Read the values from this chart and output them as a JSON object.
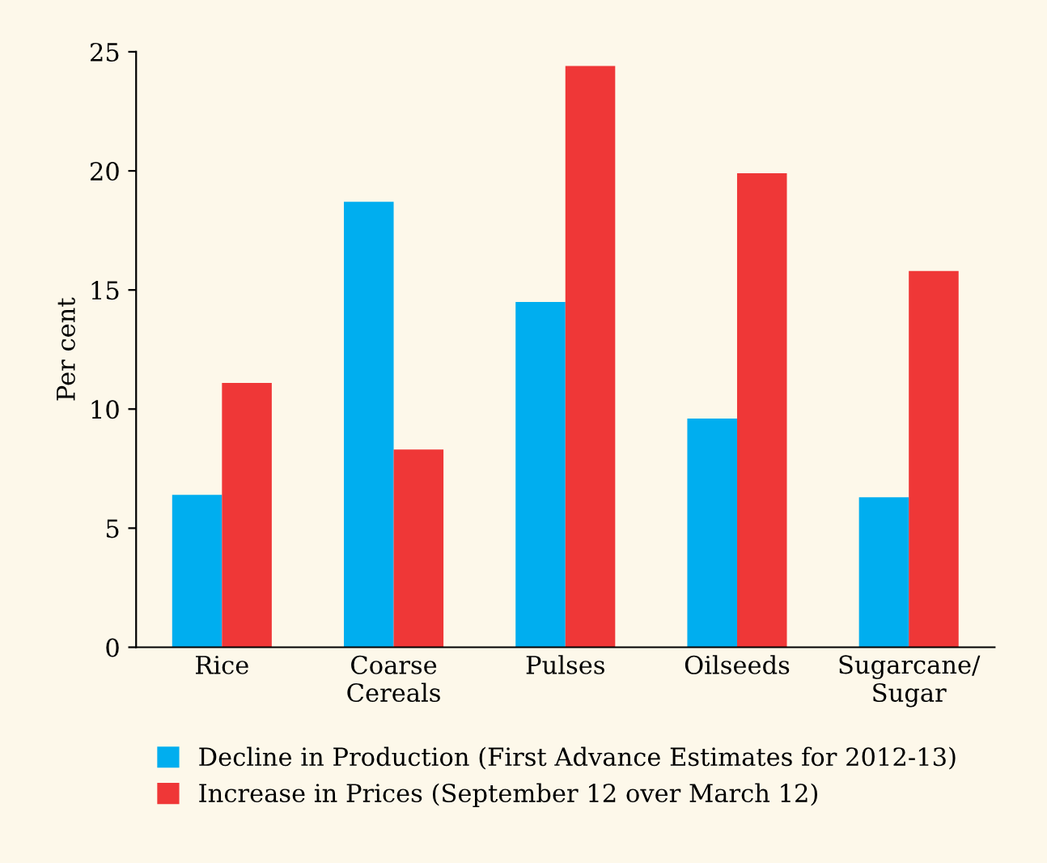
{
  "chart_data": {
    "type": "bar",
    "ylabel": "Per cent",
    "categories": [
      "Rice",
      "Coarse\nCereals",
      "Pulses",
      "Oilseeds",
      "Sugarcane/\nSugar"
    ],
    "series": [
      {
        "name": "Decline in Production (First Advance Estimates for 2012-13)",
        "color": "#00aeef",
        "values": [
          6.4,
          18.7,
          14.5,
          9.6,
          6.3
        ]
      },
      {
        "name": "Increase in Prices (September 12 over March 12)",
        "color": "#ef3737",
        "values": [
          11.1,
          8.3,
          24.4,
          19.9,
          15.8
        ]
      }
    ],
    "ylim": [
      0,
      25
    ],
    "yticks": [
      0,
      5,
      10,
      15,
      20,
      25
    ],
    "grid": false,
    "legend": "bottom"
  }
}
